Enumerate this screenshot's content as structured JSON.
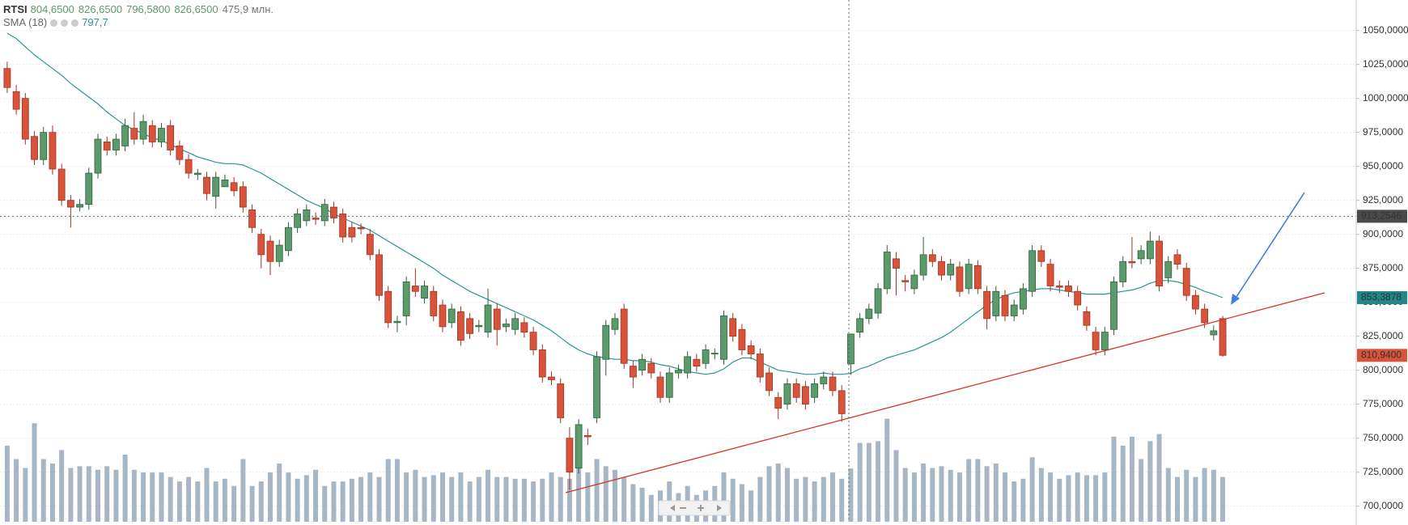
{
  "chart_data": {
    "type": "candlestick",
    "symbol": "RTSI",
    "header_values": [
      "804,6500",
      "826,6500",
      "796,5800",
      "826,6500"
    ],
    "header_volume": "475,9 млн.",
    "up_color": "#5b9a6b",
    "down_color": "#d9533a",
    "volume_color": "#a7b6c4",
    "open": [
      1022,
      1005,
      1000,
      972,
      955,
      975,
      948,
      925,
      920,
      922,
      945,
      968,
      962,
      965,
      978,
      970,
      980,
      968,
      980,
      965,
      955,
      944,
      942,
      928,
      935,
      938,
      935,
      918,
      900,
      895,
      880,
      888,
      905,
      910,
      912,
      910,
      920,
      915,
      905,
      905,
      900,
      885,
      858,
      835,
      840,
      862,
      853,
      858,
      848,
      835,
      843,
      838,
      832,
      828,
      845,
      832,
      830,
      835,
      828,
      815,
      795,
      790,
      750,
      728,
      752,
      765,
      808,
      830,
      845,
      803,
      800,
      805,
      795,
      780,
      798,
      798,
      808,
      805,
      812,
      808,
      838,
      830,
      818,
      812,
      798,
      780,
      775,
      790,
      788,
      780,
      790,
      795,
      785,
      804.65,
      828,
      838,
      842,
      860,
      882,
      866,
      860,
      870,
      885,
      880,
      870,
      876,
      860,
      877,
      858,
      840,
      855,
      840,
      845,
      858,
      888,
      878,
      862,
      862,
      858,
      843,
      828,
      815,
      830,
      865,
      880,
      882,
      882,
      895,
      868,
      885,
      875,
      855,
      845,
      826,
      838
    ],
    "high": [
      1027,
      1010,
      1004,
      976,
      979,
      980,
      952,
      929,
      926,
      949,
      974,
      972,
      974,
      985,
      990,
      988,
      984,
      982,
      984,
      969,
      959,
      948,
      946,
      946,
      944,
      942,
      939,
      922,
      904,
      899,
      896,
      909,
      919,
      922,
      916,
      926,
      924,
      919,
      909,
      908,
      904,
      889,
      862,
      840,
      869,
      875,
      866,
      862,
      852,
      849,
      847,
      842,
      837,
      860,
      849,
      838,
      842,
      839,
      832,
      819,
      799,
      794,
      758,
      764,
      757,
      814,
      837,
      842,
      849,
      807,
      812,
      809,
      799,
      802,
      804,
      814,
      812,
      819,
      816,
      844,
      842,
      834,
      822,
      816,
      802,
      784,
      794,
      794,
      792,
      794,
      799,
      799,
      789,
      826.65,
      842,
      849,
      864,
      892,
      887,
      870,
      874,
      898,
      889,
      884,
      882,
      880,
      882,
      881,
      862,
      862,
      859,
      852,
      864,
      892,
      892,
      882,
      866,
      866,
      862,
      847,
      832,
      832,
      869,
      884,
      898,
      892,
      902,
      899,
      884,
      889,
      879,
      859,
      849,
      833,
      840
    ],
    "low": [
      1004,
      988,
      966,
      951,
      951,
      944,
      921,
      905,
      917,
      918,
      941,
      958,
      958,
      961,
      966,
      966,
      964,
      964,
      958,
      951,
      941,
      940,
      925,
      919,
      936,
      928,
      916,
      901,
      875,
      870,
      876,
      884,
      901,
      906,
      907,
      906,
      908,
      894,
      894,
      900,
      881,
      851,
      831,
      828,
      833,
      854,
      849,
      836,
      828,
      831,
      818,
      823,
      828,
      824,
      818,
      828,
      826,
      824,
      811,
      791,
      789,
      761,
      712,
      724,
      745,
      761,
      796,
      826,
      801,
      787,
      796,
      794,
      776,
      776,
      794,
      794,
      799,
      801,
      808,
      804,
      821,
      811,
      808,
      791,
      781,
      764,
      771,
      776,
      771,
      776,
      786,
      781,
      762,
      796.58,
      824,
      834,
      838,
      856,
      855,
      858,
      856,
      866,
      876,
      866,
      866,
      854,
      856,
      856,
      830,
      836,
      836,
      836,
      841,
      854,
      876,
      858,
      857,
      854,
      844,
      829,
      811,
      811,
      826,
      861,
      875,
      878,
      878,
      858,
      864,
      874,
      851,
      841,
      831,
      822,
      810
    ],
    "close": [
      1008,
      992,
      970,
      955,
      975,
      948,
      925,
      920,
      922,
      945,
      970,
      962,
      970,
      980,
      970,
      983,
      968,
      978,
      962,
      955,
      945,
      945,
      930,
      942,
      940,
      932,
      920,
      905,
      885,
      880,
      892,
      905,
      915,
      918,
      911,
      922,
      912,
      898,
      898,
      904,
      885,
      855,
      835,
      836,
      865,
      858,
      862,
      840,
      832,
      845,
      822,
      827,
      833,
      848,
      830,
      834,
      838,
      828,
      815,
      795,
      793,
      765,
      725,
      760,
      751,
      810,
      833,
      838,
      805,
      795,
      808,
      798,
      780,
      798,
      800,
      810,
      803,
      815,
      812.5,
      840,
      825,
      815,
      812,
      795,
      785,
      772,
      790,
      780,
      775,
      790,
      795,
      785,
      768,
      826.65,
      838,
      845,
      860,
      887,
      875,
      865,
      870,
      885,
      880,
      870,
      878,
      858,
      878,
      860,
      838,
      858,
      840,
      848,
      860,
      888,
      880,
      862,
      861,
      858,
      848,
      833,
      815,
      828,
      865,
      880,
      879,
      888,
      895,
      862,
      880,
      878,
      855,
      845,
      835,
      829,
      810.94
    ],
    "volume": [
      680,
      560,
      480,
      880,
      560,
      520,
      640,
      480,
      496,
      496,
      464,
      496,
      464,
      600,
      464,
      440,
      440,
      440,
      400,
      360,
      400,
      360,
      480,
      360,
      384,
      320,
      560,
      320,
      360,
      440,
      520,
      440,
      384,
      416,
      464,
      320,
      360,
      360,
      384,
      400,
      440,
      400,
      560,
      560,
      440,
      464,
      400,
      416,
      440,
      400,
      440,
      360,
      400,
      464,
      400,
      400,
      384,
      384,
      360,
      384,
      440,
      400,
      384,
      480,
      440,
      560,
      496,
      464,
      400,
      336,
      304,
      240,
      280,
      360,
      256,
      320,
      240,
      280,
      320,
      440,
      384,
      336,
      280,
      400,
      496,
      520,
      480,
      384,
      400,
      360,
      400,
      440,
      384,
      475.9,
      704,
      704,
      720,
      920,
      640,
      480,
      440,
      520,
      480,
      496,
      464,
      440,
      560,
      560,
      496,
      520,
      440,
      360,
      384,
      576,
      480,
      440,
      384,
      416,
      440,
      416,
      416,
      440,
      760,
      680,
      760,
      560,
      720,
      784,
      480,
      400,
      464,
      400,
      480,
      464,
      400
    ],
    "sma": {
      "name": "SMA (18)",
      "value_label": "797,7",
      "color": "#2a9595",
      "values": [
        1048,
        1044,
        1038,
        1032,
        1027,
        1022,
        1017,
        1011,
        1006,
        1001,
        996,
        990,
        985,
        980,
        977,
        974,
        971,
        969,
        966,
        963,
        960,
        957,
        955,
        953,
        952,
        952,
        951,
        948,
        945,
        941,
        937,
        933,
        929,
        925,
        922,
        919,
        915,
        912,
        909,
        906,
        903,
        899,
        895,
        891,
        887,
        883,
        879,
        875,
        870,
        866,
        862,
        858,
        855,
        852,
        849,
        846,
        843,
        840,
        837,
        833,
        829,
        824,
        819,
        815,
        812,
        810,
        809,
        808,
        808,
        807,
        807,
        806,
        804,
        803,
        801,
        799,
        798,
        797,
        798,
        801,
        806,
        809,
        809,
        806,
        803,
        800,
        799,
        798,
        797,
        797,
        798,
        797,
        797,
        797.7,
        801,
        803,
        806,
        809,
        811,
        813,
        815,
        818,
        821,
        824,
        828,
        833,
        838,
        843,
        848,
        852,
        855,
        857,
        858,
        859,
        860,
        860,
        859,
        858,
        857,
        856,
        856,
        856,
        857,
        858,
        859,
        861,
        864,
        866,
        866,
        865,
        863,
        861,
        858,
        856,
        853.3878
      ]
    },
    "ylim": [
      688.5,
      1072.4
    ],
    "yticks": [
      {
        "value": 700,
        "label": "700,0000"
      },
      {
        "value": 725,
        "label": "725,0000"
      },
      {
        "value": 750,
        "label": "750,0000"
      },
      {
        "value": 775,
        "label": "775,0000"
      },
      {
        "value": 800,
        "label": "800,0000"
      },
      {
        "value": 825,
        "label": "825,0000"
      },
      {
        "value": 850,
        "label": "850,0000"
      },
      {
        "value": 875,
        "label": "875,0000"
      },
      {
        "value": 900,
        "label": "900,0000"
      },
      {
        "value": 925,
        "label": "925,0000"
      },
      {
        "value": 950,
        "label": "950,0000"
      },
      {
        "value": 975,
        "label": "975,0000"
      },
      {
        "value": 1000,
        "label": "1000,0000"
      },
      {
        "value": 1025,
        "label": "1025,0000"
      },
      {
        "value": 1050,
        "label": "1050,0000"
      }
    ],
    "grid": true,
    "crosshair": {
      "value": 913.2546,
      "label": "913,2546"
    },
    "sma_last_label": {
      "value": 853.3878,
      "label": "853,3878"
    },
    "last_close_label": {
      "value": 810.94,
      "label": "810,9400"
    }
  }
}
